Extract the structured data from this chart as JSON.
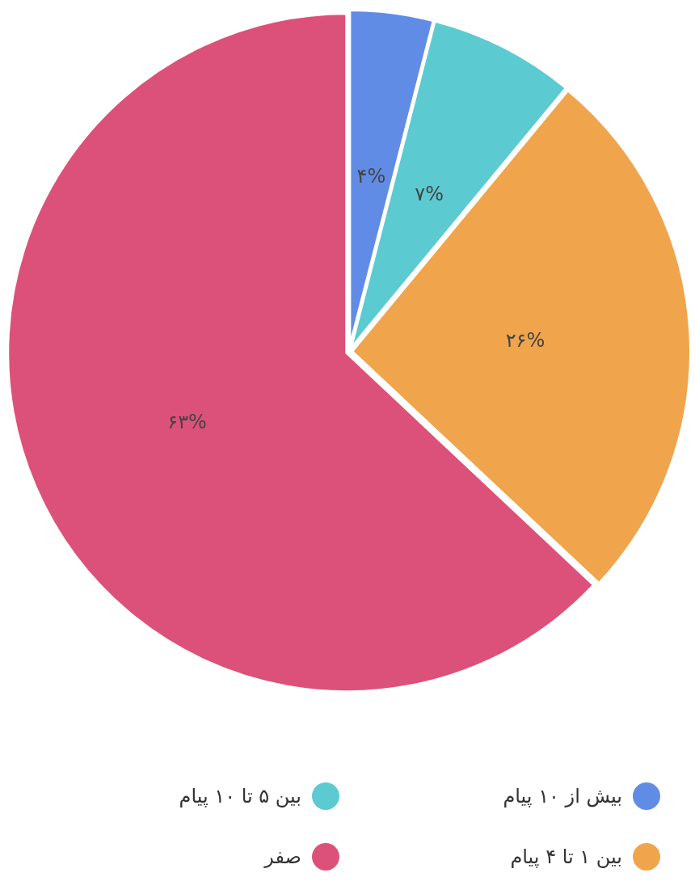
{
  "chart_data": {
    "type": "pie",
    "categories": [
      "بیش از ۱۰ پیام",
      "بین ۵ تا ۱۰ پیام",
      "بین ۱ تا ۴ پیام",
      "صفر"
    ],
    "values": [
      4,
      7,
      26,
      63
    ],
    "colors": [
      "#618ce6",
      "#5ccad1",
      "#f0a44c",
      "#dc5179"
    ],
    "value_labels": [
      "۴%",
      "۷%",
      "۲۶%",
      "۶۳%"
    ],
    "legend": "bottom"
  }
}
